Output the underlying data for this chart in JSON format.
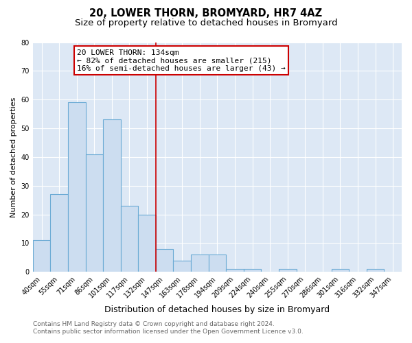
{
  "title": "20, LOWER THORN, BROMYARD, HR7 4AZ",
  "subtitle": "Size of property relative to detached houses in Bromyard",
  "xlabel": "Distribution of detached houses by size in Bromyard",
  "ylabel": "Number of detached properties",
  "bin_labels": [
    "40sqm",
    "55sqm",
    "71sqm",
    "86sqm",
    "101sqm",
    "117sqm",
    "132sqm",
    "147sqm",
    "163sqm",
    "178sqm",
    "194sqm",
    "209sqm",
    "224sqm",
    "240sqm",
    "255sqm",
    "270sqm",
    "286sqm",
    "301sqm",
    "316sqm",
    "332sqm",
    "347sqm"
  ],
  "bar_values": [
    11,
    27,
    59,
    41,
    53,
    23,
    20,
    8,
    4,
    6,
    6,
    1,
    1,
    0,
    1,
    0,
    0,
    1,
    0,
    1,
    0
  ],
  "bar_color": "#ccddf0",
  "bar_edge_color": "#6aaad4",
  "highlight_line_bin": 6,
  "annotation_title": "20 LOWER THORN: 134sqm",
  "annotation_line1": "← 82% of detached houses are smaller (215)",
  "annotation_line2": "16% of semi-detached houses are larger (43) →",
  "annotation_box_color": "#ffffff",
  "annotation_box_edge_color": "#cc0000",
  "ylim": [
    0,
    80
  ],
  "yticks": [
    0,
    10,
    20,
    30,
    40,
    50,
    60,
    70,
    80
  ],
  "footer1": "Contains HM Land Registry data © Crown copyright and database right 2024.",
  "footer2": "Contains public sector information licensed under the Open Government Licence v3.0.",
  "plot_bg_color": "#dde8f5",
  "fig_bg_color": "#ffffff",
  "grid_color": "#ffffff",
  "title_fontsize": 10.5,
  "subtitle_fontsize": 9.5,
  "xlabel_fontsize": 9,
  "ylabel_fontsize": 8,
  "tick_fontsize": 7,
  "annotation_fontsize": 8,
  "footer_fontsize": 6.5,
  "red_line_color": "#cc0000"
}
